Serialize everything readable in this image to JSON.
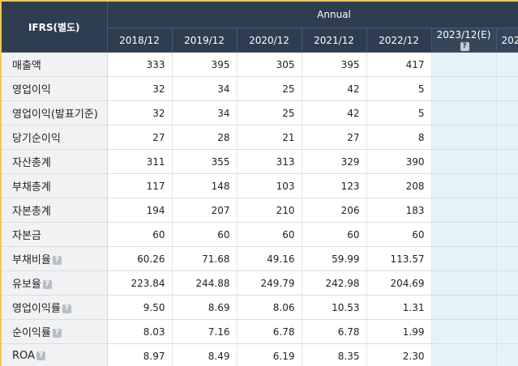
{
  "table": {
    "corner_label": "IFRS(별도)",
    "group_header": "Annual",
    "years": [
      "2018/12",
      "2019/12",
      "2020/12",
      "2021/12",
      "2022/12"
    ],
    "estimate_year": "2023/12(E)",
    "partial_year": "202",
    "help_glyph": "?",
    "rows": [
      {
        "label": "매출액",
        "help": false,
        "values": [
          "333",
          "395",
          "305",
          "395",
          "417"
        ]
      },
      {
        "label": "영업이익",
        "help": false,
        "values": [
          "32",
          "34",
          "25",
          "42",
          "5"
        ]
      },
      {
        "label": "영업이익(발표기준)",
        "help": false,
        "values": [
          "32",
          "34",
          "25",
          "42",
          "5"
        ]
      },
      {
        "label": "당기순이익",
        "help": false,
        "values": [
          "27",
          "28",
          "21",
          "27",
          "8"
        ]
      },
      {
        "label": "자산총계",
        "help": false,
        "values": [
          "311",
          "355",
          "313",
          "329",
          "390"
        ]
      },
      {
        "label": "부채총계",
        "help": false,
        "values": [
          "117",
          "148",
          "103",
          "123",
          "208"
        ]
      },
      {
        "label": "자본총계",
        "help": false,
        "values": [
          "194",
          "207",
          "210",
          "206",
          "183"
        ]
      },
      {
        "label": "자본금",
        "help": false,
        "values": [
          "60",
          "60",
          "60",
          "60",
          "60"
        ]
      },
      {
        "label": "부채비율",
        "help": true,
        "values": [
          "60.26",
          "71.68",
          "49.16",
          "59.99",
          "113.57"
        ]
      },
      {
        "label": "유보율",
        "help": true,
        "values": [
          "223.84",
          "244.88",
          "249.79",
          "242.98",
          "204.69"
        ]
      },
      {
        "label": "영업이익률",
        "help": true,
        "values": [
          "9.50",
          "8.69",
          "8.06",
          "10.53",
          "1.31"
        ]
      },
      {
        "label": "순이익률",
        "help": true,
        "values": [
          "8.03",
          "7.16",
          "6.78",
          "6.78",
          "1.99"
        ]
      },
      {
        "label": "ROA",
        "help": true,
        "values": [
          "8.97",
          "8.49",
          "6.19",
          "8.35",
          "2.30"
        ]
      }
    ]
  },
  "colors": {
    "header_bg": "#2e3d4f",
    "label_bg": "#f1f2f4",
    "estimate_bg": "#e6f3f8",
    "window_border": "#f3c94a"
  }
}
